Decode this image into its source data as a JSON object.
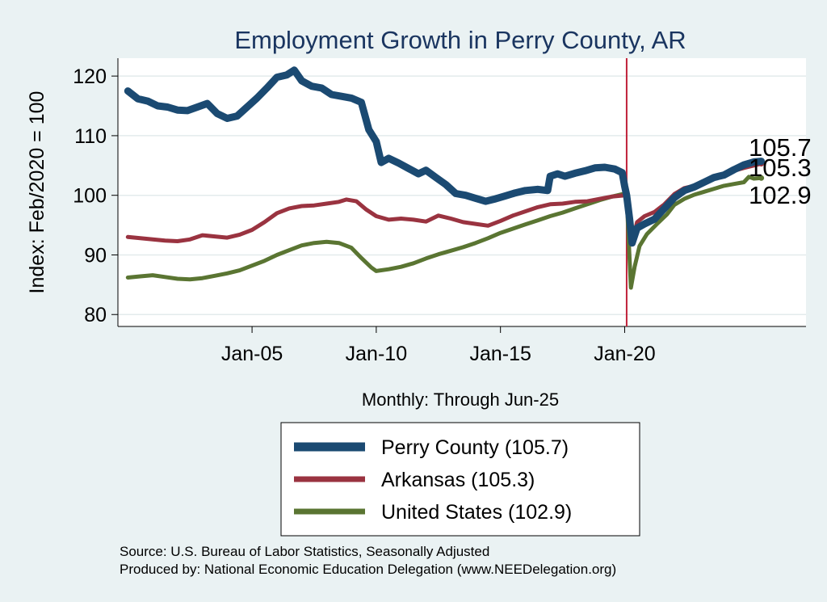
{
  "chart_data": {
    "type": "line",
    "title": "Employment Growth in Perry  County, AR",
    "ylabel": "Index: Feb/2020 = 100",
    "xlabel": "Monthly: Through Jun-25",
    "ylim": [
      78,
      123
    ],
    "xlim": [
      1999.6,
      2027.3
    ],
    "yticks": [
      80,
      90,
      100,
      110,
      120
    ],
    "xticks": [
      {
        "value": 2005.0,
        "label": "Jan-05"
      },
      {
        "value": 2010.0,
        "label": "Jan-10"
      },
      {
        "value": 2015.0,
        "label": "Jan-15"
      },
      {
        "value": 2020.0,
        "label": "Jan-20"
      }
    ],
    "reference_line": {
      "x": 2020.08,
      "color": "#c0213a"
    },
    "grid": true,
    "legend_position": "bottom",
    "series": [
      {
        "name": "Perry  County",
        "legend_label": "Perry  County (105.7)",
        "end_label": "105.7",
        "color": "#1b4a72",
        "width": 9,
        "points": [
          [
            2000.0,
            117.5
          ],
          [
            2000.4,
            116.2
          ],
          [
            2000.8,
            115.8
          ],
          [
            2001.2,
            115.0
          ],
          [
            2001.6,
            114.8
          ],
          [
            2002.0,
            114.3
          ],
          [
            2002.4,
            114.2
          ],
          [
            2002.8,
            114.8
          ],
          [
            2003.2,
            115.4
          ],
          [
            2003.6,
            113.7
          ],
          [
            2004.0,
            112.9
          ],
          [
            2004.4,
            113.3
          ],
          [
            2004.8,
            114.8
          ],
          [
            2005.2,
            116.3
          ],
          [
            2005.6,
            118.0
          ],
          [
            2006.0,
            119.8
          ],
          [
            2006.4,
            120.2
          ],
          [
            2006.7,
            121.0
          ],
          [
            2007.0,
            119.2
          ],
          [
            2007.4,
            118.3
          ],
          [
            2007.8,
            118.0
          ],
          [
            2008.2,
            116.9
          ],
          [
            2008.6,
            116.6
          ],
          [
            2009.0,
            116.3
          ],
          [
            2009.4,
            115.6
          ],
          [
            2009.7,
            111.0
          ],
          [
            2010.0,
            109.0
          ],
          [
            2010.2,
            105.5
          ],
          [
            2010.5,
            106.2
          ],
          [
            2010.9,
            105.4
          ],
          [
            2011.3,
            104.5
          ],
          [
            2011.7,
            103.6
          ],
          [
            2012.0,
            104.2
          ],
          [
            2012.4,
            103.0
          ],
          [
            2012.8,
            101.8
          ],
          [
            2013.2,
            100.3
          ],
          [
            2013.6,
            100.0
          ],
          [
            2014.0,
            99.5
          ],
          [
            2014.4,
            99.0
          ],
          [
            2014.8,
            99.4
          ],
          [
            2015.2,
            99.9
          ],
          [
            2015.6,
            100.4
          ],
          [
            2016.0,
            100.8
          ],
          [
            2016.5,
            101.0
          ],
          [
            2016.9,
            100.8
          ],
          [
            2017.0,
            103.2
          ],
          [
            2017.3,
            103.6
          ],
          [
            2017.6,
            103.2
          ],
          [
            2018.0,
            103.7
          ],
          [
            2018.4,
            104.1
          ],
          [
            2018.8,
            104.6
          ],
          [
            2019.2,
            104.7
          ],
          [
            2019.6,
            104.4
          ],
          [
            2019.9,
            103.8
          ],
          [
            2020.0,
            101.5
          ],
          [
            2020.08,
            100.0
          ],
          [
            2020.2,
            96.0
          ],
          [
            2020.3,
            92.0
          ],
          [
            2020.5,
            94.5
          ],
          [
            2020.8,
            95.2
          ],
          [
            2021.2,
            96.0
          ],
          [
            2021.6,
            97.8
          ],
          [
            2022.0,
            99.6
          ],
          [
            2022.4,
            100.8
          ],
          [
            2022.8,
            101.4
          ],
          [
            2023.2,
            102.2
          ],
          [
            2023.6,
            103.0
          ],
          [
            2024.0,
            103.4
          ],
          [
            2024.4,
            104.3
          ],
          [
            2024.8,
            105.1
          ],
          [
            2025.2,
            105.6
          ],
          [
            2025.5,
            105.7
          ]
        ]
      },
      {
        "name": "Arkansas",
        "legend_label": "Arkansas (105.3)",
        "end_label": "105.3",
        "color": "#9a3340",
        "width": 5,
        "points": [
          [
            2000.0,
            93.0
          ],
          [
            2000.5,
            92.8
          ],
          [
            2001.0,
            92.6
          ],
          [
            2001.5,
            92.4
          ],
          [
            2002.0,
            92.3
          ],
          [
            2002.5,
            92.6
          ],
          [
            2003.0,
            93.3
          ],
          [
            2003.5,
            93.1
          ],
          [
            2004.0,
            92.9
          ],
          [
            2004.5,
            93.4
          ],
          [
            2005.0,
            94.2
          ],
          [
            2005.5,
            95.5
          ],
          [
            2006.0,
            97.0
          ],
          [
            2006.5,
            97.8
          ],
          [
            2007.0,
            98.2
          ],
          [
            2007.5,
            98.3
          ],
          [
            2008.0,
            98.6
          ],
          [
            2008.5,
            98.9
          ],
          [
            2008.8,
            99.3
          ],
          [
            2009.2,
            99.0
          ],
          [
            2009.6,
            97.6
          ],
          [
            2010.0,
            96.5
          ],
          [
            2010.5,
            95.9
          ],
          [
            2011.0,
            96.1
          ],
          [
            2011.5,
            95.9
          ],
          [
            2012.0,
            95.6
          ],
          [
            2012.5,
            96.6
          ],
          [
            2013.0,
            96.1
          ],
          [
            2013.5,
            95.5
          ],
          [
            2014.0,
            95.2
          ],
          [
            2014.5,
            94.9
          ],
          [
            2015.0,
            95.7
          ],
          [
            2015.5,
            96.6
          ],
          [
            2016.0,
            97.3
          ],
          [
            2016.5,
            98.0
          ],
          [
            2017.0,
            98.5
          ],
          [
            2017.5,
            98.6
          ],
          [
            2018.0,
            98.9
          ],
          [
            2018.5,
            99.0
          ],
          [
            2019.0,
            99.4
          ],
          [
            2019.5,
            99.8
          ],
          [
            2020.0,
            100.0
          ],
          [
            2020.08,
            100.2
          ],
          [
            2020.3,
            92.0
          ],
          [
            2020.5,
            95.5
          ],
          [
            2020.8,
            96.5
          ],
          [
            2021.2,
            97.2
          ],
          [
            2021.6,
            98.5
          ],
          [
            2022.0,
            100.2
          ],
          [
            2022.4,
            101.2
          ],
          [
            2022.8,
            101.6
          ],
          [
            2023.2,
            102.4
          ],
          [
            2023.6,
            103.0
          ],
          [
            2024.0,
            103.5
          ],
          [
            2024.4,
            104.1
          ],
          [
            2024.8,
            104.6
          ],
          [
            2025.2,
            105.0
          ],
          [
            2025.5,
            105.3
          ]
        ]
      },
      {
        "name": "United States",
        "legend_label": "United States (102.9)",
        "end_label": "102.9",
        "color": "#5a7532",
        "width": 5,
        "points": [
          [
            2000.0,
            86.2
          ],
          [
            2000.5,
            86.4
          ],
          [
            2001.0,
            86.6
          ],
          [
            2001.5,
            86.3
          ],
          [
            2002.0,
            86.0
          ],
          [
            2002.5,
            85.9
          ],
          [
            2003.0,
            86.1
          ],
          [
            2003.5,
            86.5
          ],
          [
            2004.0,
            86.9
          ],
          [
            2004.5,
            87.4
          ],
          [
            2005.0,
            88.2
          ],
          [
            2005.5,
            89.0
          ],
          [
            2006.0,
            90.0
          ],
          [
            2006.5,
            90.8
          ],
          [
            2007.0,
            91.6
          ],
          [
            2007.5,
            92.0
          ],
          [
            2008.0,
            92.2
          ],
          [
            2008.5,
            92.0
          ],
          [
            2009.0,
            91.2
          ],
          [
            2009.4,
            89.5
          ],
          [
            2009.8,
            87.9
          ],
          [
            2010.0,
            87.3
          ],
          [
            2010.5,
            87.6
          ],
          [
            2011.0,
            88.0
          ],
          [
            2011.5,
            88.6
          ],
          [
            2012.0,
            89.4
          ],
          [
            2012.5,
            90.1
          ],
          [
            2013.0,
            90.7
          ],
          [
            2013.5,
            91.3
          ],
          [
            2014.0,
            92.0
          ],
          [
            2014.5,
            92.8
          ],
          [
            2015.0,
            93.7
          ],
          [
            2015.5,
            94.4
          ],
          [
            2016.0,
            95.1
          ],
          [
            2016.5,
            95.8
          ],
          [
            2017.0,
            96.5
          ],
          [
            2017.5,
            97.1
          ],
          [
            2018.0,
            97.8
          ],
          [
            2018.5,
            98.5
          ],
          [
            2019.0,
            99.2
          ],
          [
            2019.5,
            99.8
          ],
          [
            2020.0,
            100.3
          ],
          [
            2020.08,
            100.0
          ],
          [
            2020.25,
            84.5
          ],
          [
            2020.4,
            88.0
          ],
          [
            2020.6,
            91.5
          ],
          [
            2020.9,
            93.5
          ],
          [
            2021.3,
            95.2
          ],
          [
            2021.7,
            96.8
          ],
          [
            2022.0,
            98.4
          ],
          [
            2022.4,
            99.4
          ],
          [
            2022.8,
            100.1
          ],
          [
            2023.2,
            100.6
          ],
          [
            2023.6,
            101.1
          ],
          [
            2024.0,
            101.6
          ],
          [
            2024.4,
            101.9
          ],
          [
            2024.8,
            102.2
          ],
          [
            2025.0,
            103.1
          ],
          [
            2025.2,
            102.8
          ],
          [
            2025.5,
            102.9
          ]
        ]
      }
    ]
  },
  "source_lines": [
    "Source: U.S. Bureau of Labor Statistics, Seasonally Adjusted",
    "Produced by: National Economic Education Delegation (www.NEEDelegation.org)"
  ]
}
